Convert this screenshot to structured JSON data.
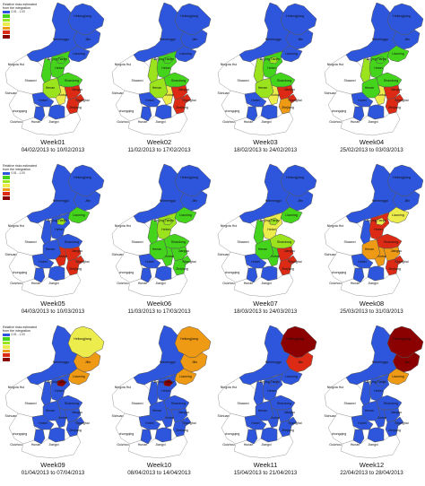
{
  "colors": {
    "dark_red": "#8b0000",
    "red": "#dc2a14",
    "orange": "#ef9a14",
    "yellow": "#ecec4c",
    "light_green": "#9be31c",
    "green": "#44d41c",
    "blue": "#2e56dc",
    "white": "#ffffff",
    "border": "#555555"
  },
  "legend": {
    "title_line1": "Relative risks estimated",
    "title_line2": "from the integration",
    "items": [
      {
        "label": "0.51 - 1.00",
        "color": "blue"
      },
      {
        "label": "",
        "color": "green"
      },
      {
        "label": "",
        "color": "light_green"
      },
      {
        "label": "",
        "color": "yellow"
      },
      {
        "label": "",
        "color": "orange"
      },
      {
        "label": "",
        "color": "red"
      },
      {
        "label": "",
        "color": "dark_red"
      }
    ]
  },
  "region_labels": {
    "heilongjiang": "Heilongjiang",
    "jilin": "Jilin",
    "neimenggu": "Neimenggu",
    "liaoning": "Liaoning",
    "beijing_tianjin": "Beijing Tianjin",
    "hebei": "Hebei",
    "shandong": "Shandong",
    "ningxia_hui": "Ningxia Hui",
    "shaanxi": "Shaanxi",
    "henan": "Henan",
    "jiangsu": "Jiangsu",
    "anhui": "Anhui",
    "shanghai": "Shanghai",
    "sichuan": "Sichuan",
    "hubei": "Hubei",
    "zhejiang": "Zhejiang",
    "chongqing": "chongqing",
    "guizhou": "Guizhou",
    "hunan": "Hunan",
    "jiangxi": "Jiangxi"
  },
  "weeks": [
    {
      "label": "Week01",
      "range": "04/02/2013 to 10/02/2013",
      "fills": {
        "heilongjiang": "blue",
        "jilin": "blue",
        "neimenggu": "blue",
        "liaoning": "blue",
        "beijing_tianjin": "green",
        "hebei": "green",
        "shandong": "green",
        "shanxi": "green",
        "henan": "light_green",
        "anhui": "yellow",
        "jiangsu": "red",
        "shanghai": "red",
        "zhejiang": "red",
        "hubei": "blue",
        "hunan": "blue",
        "jiangxi": "blue"
      }
    },
    {
      "label": "Week02",
      "range": "11/02/2013 to 17/02/2013",
      "fills": {
        "heilongjiang": "blue",
        "jilin": "blue",
        "neimenggu": "blue",
        "liaoning": "blue",
        "beijing_tianjin": "green",
        "hebei": "green",
        "shandong": "green",
        "shanxi": "light_green",
        "henan": "light_green",
        "anhui": "yellow",
        "jiangsu": "red",
        "shanghai": "red",
        "zhejiang": "red",
        "hubei": "blue",
        "hunan": "blue",
        "jiangxi": "blue"
      }
    },
    {
      "label": "Week03",
      "range": "18/02/2013 to 24/02/2013",
      "fills": {
        "heilongjiang": "blue",
        "jilin": "blue",
        "neimenggu": "blue",
        "liaoning": "blue",
        "beijing_tianjin": "light_green",
        "hebei": "green",
        "shandong": "green",
        "shanxi": "light_green",
        "henan": "light_green",
        "anhui": "yellow",
        "jiangsu": "red",
        "shanghai": "red",
        "zhejiang": "orange",
        "hubei": "blue",
        "hunan": "blue",
        "jiangxi": "blue"
      }
    },
    {
      "label": "Week04",
      "range": "25/02/2013 to 03/03/2013",
      "fills": {
        "heilongjiang": "blue",
        "jilin": "blue",
        "neimenggu": "blue",
        "liaoning": "green",
        "beijing_tianjin": "green",
        "hebei": "green",
        "shandong": "green",
        "shanxi": "light_green",
        "henan": "green",
        "anhui": "yellow",
        "jiangsu": "red",
        "shanghai": "red",
        "zhejiang": "red",
        "hubei": "blue",
        "hunan": "blue",
        "jiangxi": "blue"
      }
    },
    {
      "label": "Week05",
      "range": "04/03/2013 to 10/03/2013",
      "fills": {
        "heilongjiang": "blue",
        "jilin": "blue",
        "neimenggu": "blue",
        "liaoning": "green",
        "beijing_tianjin": "light_green",
        "hebei": "blue",
        "shandong": "blue",
        "shanxi": "blue",
        "henan": "blue",
        "anhui": "red",
        "jiangsu": "red",
        "shanghai": "red",
        "zhejiang": "red",
        "hubei": "blue",
        "hunan": "blue",
        "jiangxi": "blue"
      }
    },
    {
      "label": "Week06",
      "range": "11/03/2013 to 17/03/2013",
      "fills": {
        "heilongjiang": "blue",
        "jilin": "blue",
        "neimenggu": "blue",
        "liaoning": "green",
        "beijing_tianjin": "light_green",
        "hebei": "light_green",
        "shandong": "green",
        "shanxi": "green",
        "henan": "green",
        "anhui": "green",
        "jiangsu": "green",
        "shanghai": "green",
        "zhejiang": "green",
        "hubei": "blue",
        "hunan": "blue",
        "jiangxi": "blue"
      }
    },
    {
      "label": "Week07",
      "range": "18/03/2013 to 24/03/2013",
      "fills": {
        "heilongjiang": "blue",
        "jilin": "blue",
        "neimenggu": "blue",
        "liaoning": "green",
        "beijing_tianjin": "light_green",
        "hebei": "yellow",
        "shandong": "light_green",
        "shanxi": "green",
        "henan": "green",
        "anhui": "green",
        "jiangsu": "red",
        "shanghai": "red",
        "zhejiang": "red",
        "hubei": "blue",
        "hunan": "blue",
        "jiangxi": "blue"
      }
    },
    {
      "label": "Week08",
      "range": "25/03/2013 to 31/03/2013",
      "fills": {
        "heilongjiang": "blue",
        "jilin": "blue",
        "neimenggu": "blue",
        "liaoning": "yellow",
        "beijing_tianjin": "yellow",
        "hebei": "red",
        "shandong": "red",
        "shanxi": "blue",
        "henan": "orange",
        "anhui": "orange",
        "jiangsu": "orange",
        "shanghai": "red",
        "zhejiang": "red",
        "hubei": "blue",
        "hunan": "blue",
        "jiangxi": "blue"
      }
    },
    {
      "label": "Week09",
      "range": "01/04/2013 to 07/04/2013",
      "fills": {
        "heilongjiang": "yellow",
        "jilin": "orange",
        "neimenggu": "blue",
        "liaoning": "orange",
        "beijing_tianjin": "dark_red",
        "hebei": "blue",
        "shandong": "blue",
        "shanxi": "blue",
        "henan": "blue",
        "anhui": "blue",
        "jiangsu": "blue",
        "shanghai": "blue",
        "zhejiang": "blue",
        "hubei": "blue",
        "hunan": "blue",
        "jiangxi": "blue"
      }
    },
    {
      "label": "Week10",
      "range": "08/04/2013 to 14/04/2013",
      "fills": {
        "heilongjiang": "orange",
        "jilin": "orange",
        "neimenggu": "blue",
        "liaoning": "orange",
        "beijing_tianjin": "dark_red",
        "hebei": "blue",
        "shandong": "blue",
        "shanxi": "blue",
        "henan": "blue",
        "anhui": "blue",
        "jiangsu": "blue",
        "shanghai": "blue",
        "zhejiang": "blue",
        "hubei": "blue",
        "hunan": "blue",
        "jiangxi": "blue"
      }
    },
    {
      "label": "Week11",
      "range": "15/04/2013 to 21/04/2013",
      "fills": {
        "heilongjiang": "dark_red",
        "jilin": "red",
        "neimenggu": "blue",
        "liaoning": "blue",
        "beijing_tianjin": "blue",
        "hebei": "blue",
        "shandong": "blue",
        "shanxi": "blue",
        "henan": "blue",
        "anhui": "blue",
        "jiangsu": "blue",
        "shanghai": "blue",
        "zhejiang": "blue",
        "hubei": "blue",
        "hunan": "blue",
        "jiangxi": "blue"
      }
    },
    {
      "label": "Week12",
      "range": "22/04/2013 to 28/04/2013",
      "fills": {
        "heilongjiang": "dark_red",
        "jilin": "dark_red",
        "neimenggu": "blue",
        "liaoning": "orange",
        "beijing_tianjin": "blue",
        "hebei": "blue",
        "shandong": "blue",
        "shanxi": "blue",
        "henan": "blue",
        "anhui": "blue",
        "jiangsu": "blue",
        "shanghai": "blue",
        "zhejiang": "blue",
        "hubei": "blue",
        "hunan": "blue",
        "jiangxi": "blue"
      }
    }
  ]
}
